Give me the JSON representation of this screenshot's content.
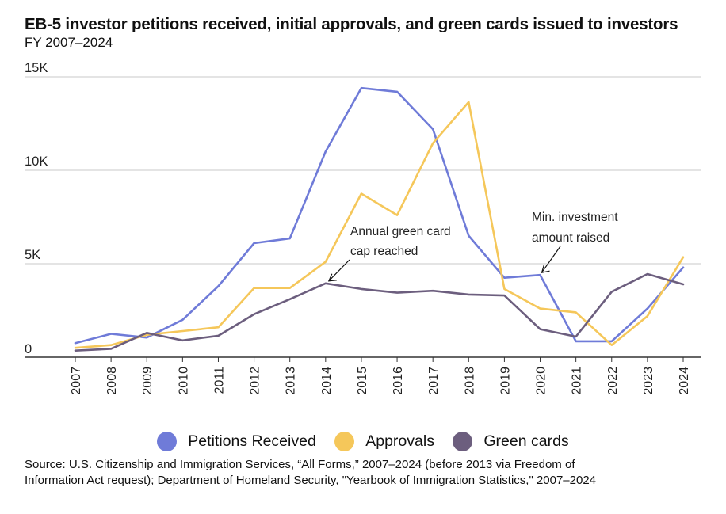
{
  "title": "EB-5 investor petitions received, initial approvals, and green cards issued to investors",
  "subtitle": "FY 2007–2024",
  "chart_data": {
    "type": "line",
    "x": [
      "2007",
      "2008",
      "2009",
      "2010",
      "2011",
      "2012",
      "2013",
      "2014",
      "2015",
      "2016",
      "2017",
      "2018",
      "2019",
      "2020",
      "2021",
      "2022",
      "2023",
      "2024"
    ],
    "y_ticks": [
      {
        "value": 0,
        "label": "0"
      },
      {
        "value": 5000,
        "label": "5K"
      },
      {
        "value": 10000,
        "label": "10K"
      },
      {
        "value": 15000,
        "label": "15K"
      }
    ],
    "ylim": [
      0,
      15000
    ],
    "grid": true,
    "legend_position": "bottom",
    "series": [
      {
        "name": "Petitions Received",
        "color": "#6f7bd8",
        "values": [
          750,
          1250,
          1050,
          2000,
          3800,
          6100,
          6350,
          11000,
          14400,
          14200,
          12200,
          6500,
          4250,
          4400,
          850,
          850,
          2600,
          4800
        ]
      },
      {
        "name": "Approvals",
        "color": "#f5c75a",
        "values": [
          500,
          650,
          1200,
          1400,
          1600,
          3700,
          3700,
          5100,
          8750,
          7600,
          11450,
          13650,
          3650,
          2600,
          2400,
          650,
          2200,
          5350
        ]
      },
      {
        "name": "Green cards",
        "color": "#6c5e7e",
        "values": [
          350,
          450,
          1300,
          900,
          1150,
          2300,
          3100,
          3950,
          3650,
          3450,
          3550,
          3350,
          3300,
          1500,
          1100,
          3500,
          4450,
          3900
        ]
      }
    ],
    "annotations": [
      {
        "lines": [
          "Annual green card",
          "cap reached"
        ],
        "x": "2014",
        "y": 3950
      },
      {
        "lines": [
          "Min. investment",
          "amount raised"
        ],
        "x": "2020",
        "y": 4400
      }
    ]
  },
  "source": [
    "Source: U.S. Citizenship and Immigration Services, “All Forms,” 2007–2024 (before 2013 via Freedom of",
    "Information Act request); Department of Homeland Security, \"Yearbook of Immigration Statistics,\" 2007–2024"
  ]
}
